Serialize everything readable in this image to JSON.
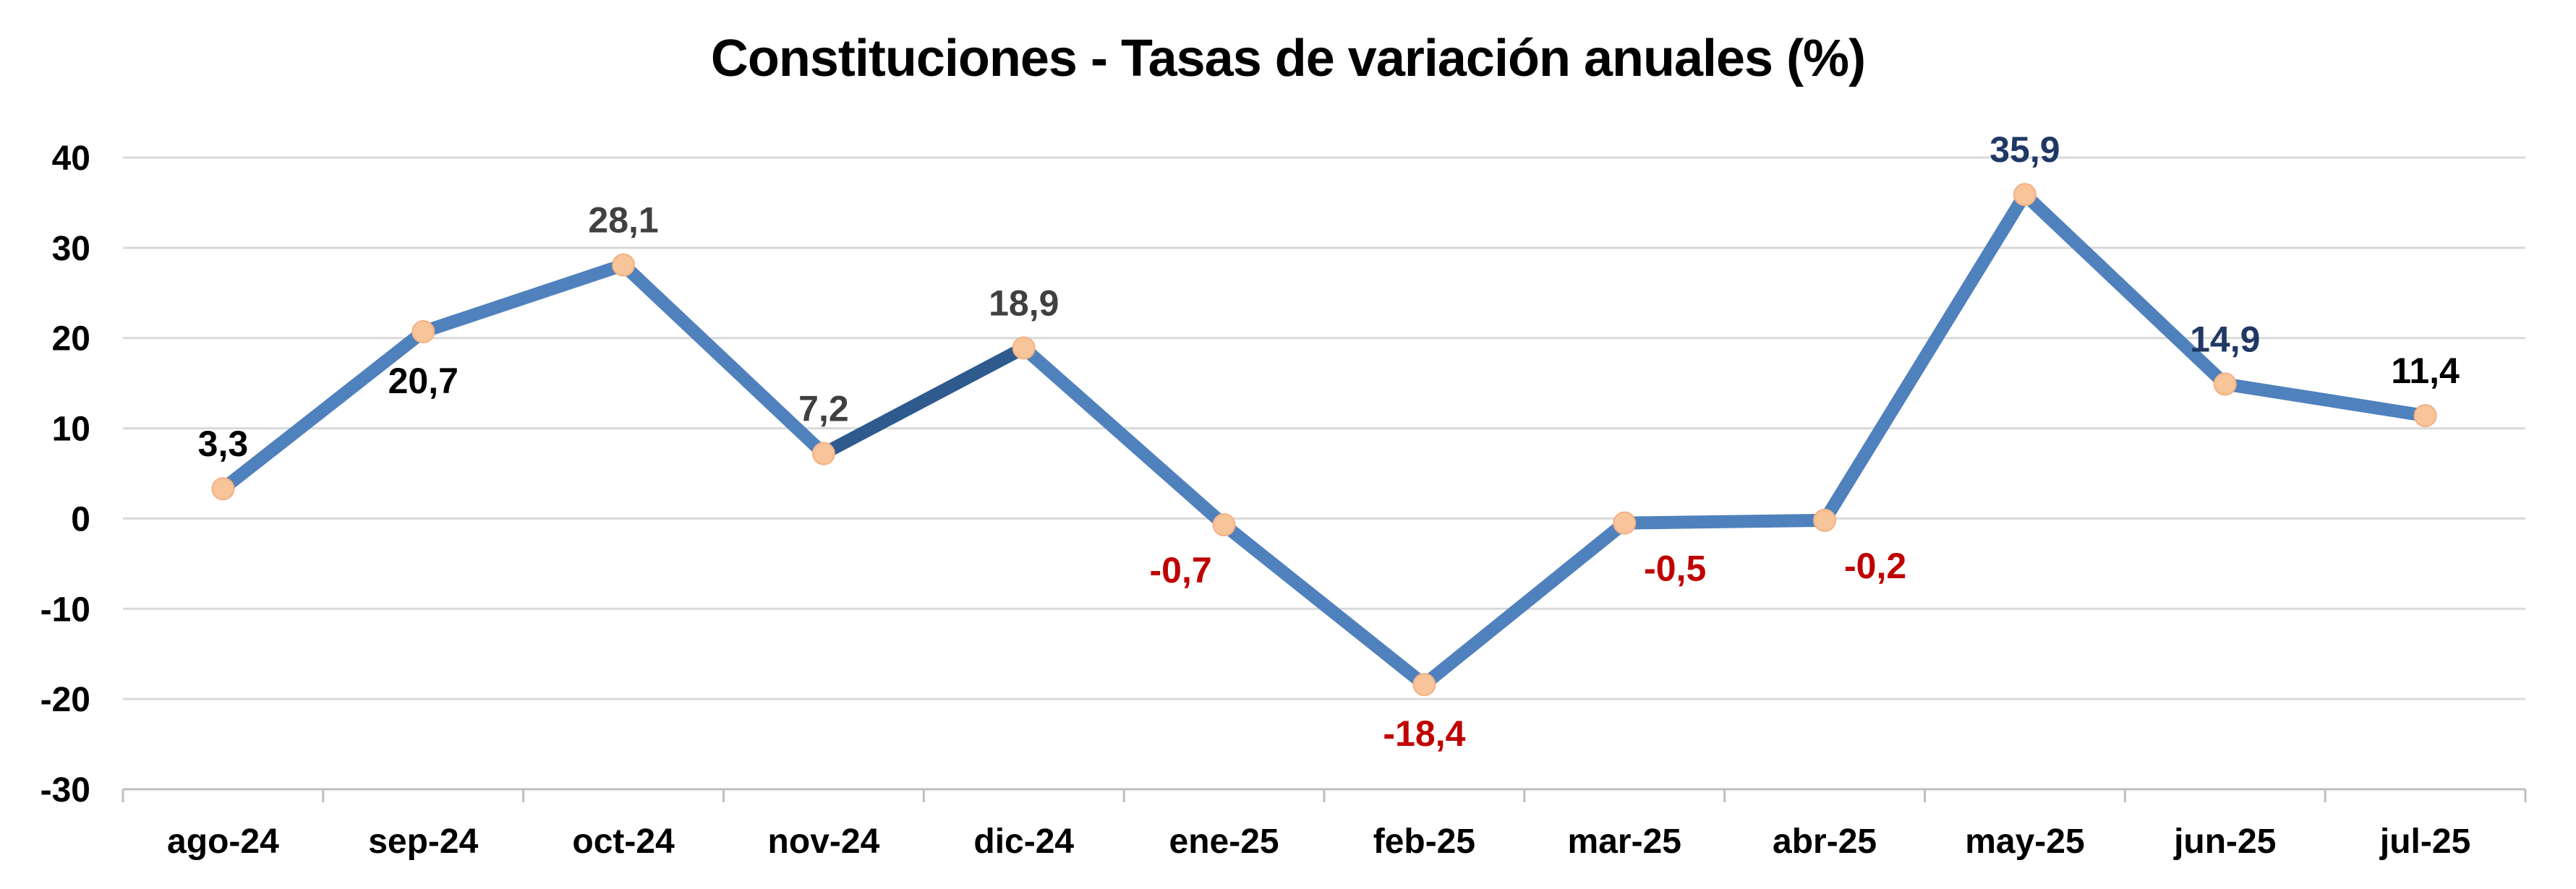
{
  "chart_data": {
    "type": "line",
    "title": "Constituciones - Tasas de variación anuales (%)",
    "xlabel": "",
    "ylabel": "",
    "categories": [
      "ago-24",
      "sep-24",
      "oct-24",
      "nov-24",
      "dic-24",
      "ene-25",
      "feb-25",
      "mar-25",
      "abr-25",
      "may-25",
      "jun-25",
      "jul-25"
    ],
    "series": [
      {
        "values": [
          3.3,
          20.7,
          28.1,
          7.2,
          18.9,
          -0.7,
          -18.4,
          -0.5,
          -0.2,
          35.9,
          14.9,
          11.4
        ]
      }
    ],
    "data_labels": [
      "3,3",
      "20,7",
      "28,1",
      "7,2",
      "18,9",
      "-0,7",
      "-18,4",
      "-0,5",
      "-0,2",
      "35,9",
      "14,9",
      "11,4"
    ],
    "label_colors": [
      "#000000",
      "#000000",
      "#404040",
      "#404040",
      "#404040",
      "#C00000",
      "#C00000",
      "#C00000",
      "#C00000",
      "#1F3864",
      "#1F3864",
      "#000000"
    ],
    "label_placement": [
      "above",
      "below",
      "above",
      "above",
      "above",
      "below-left",
      "below",
      "below-right",
      "below-right",
      "above",
      "above",
      "above"
    ],
    "ylim": [
      -30,
      40
    ],
    "yticks": [
      -30,
      -20,
      -10,
      0,
      10,
      20,
      30,
      40
    ],
    "grid": true,
    "legend": "none",
    "colors": {
      "line": "#4F81BD",
      "line_dark": "#2E5A8E",
      "marker": "#F8C49A",
      "grid": "#D9D9D9",
      "axis": "#BFBFBF"
    }
  }
}
